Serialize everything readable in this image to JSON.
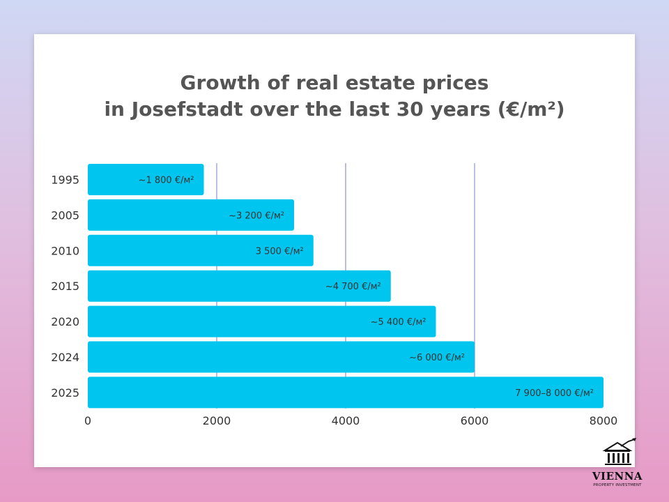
{
  "colors": {
    "bar": "#00c5ee",
    "grid": "#7a7fc8",
    "text": "#555555",
    "label": "#333333"
  },
  "chart_data": {
    "type": "bar",
    "orientation": "horizontal",
    "title": "Growth of real estate prices in Josefstadt over the last 30 years (€/m²)",
    "title_lines": [
      "Growth of real estate prices",
      "in Josefstadt over the last 30 years (€/m²)"
    ],
    "categories": [
      "1995",
      "2005",
      "2010",
      "2015",
      "2020",
      "2024",
      "2025"
    ],
    "values": [
      1800,
      3200,
      3500,
      4700,
      5400,
      6000,
      8000
    ],
    "data_labels": [
      "~1 800 €/м²",
      "~3 200 €/м²",
      "3 500 €/м²",
      "~4 700 €/м²",
      "~5 400 €/м²",
      "~6 000 €/м²",
      "7 900–8 000 €/м²"
    ],
    "xlim": [
      0,
      8000
    ],
    "xticks": [
      0,
      2000,
      4000,
      6000,
      8000
    ],
    "xtick_labels": [
      "0",
      "2000",
      "4000",
      "6000",
      "8000"
    ],
    "xlabel": "",
    "ylabel": "",
    "grid": true
  },
  "logo": {
    "name": "VIENNA",
    "subtitle": "PROPERTY INVESTMENT",
    "icon": "building-columns-icon"
  }
}
